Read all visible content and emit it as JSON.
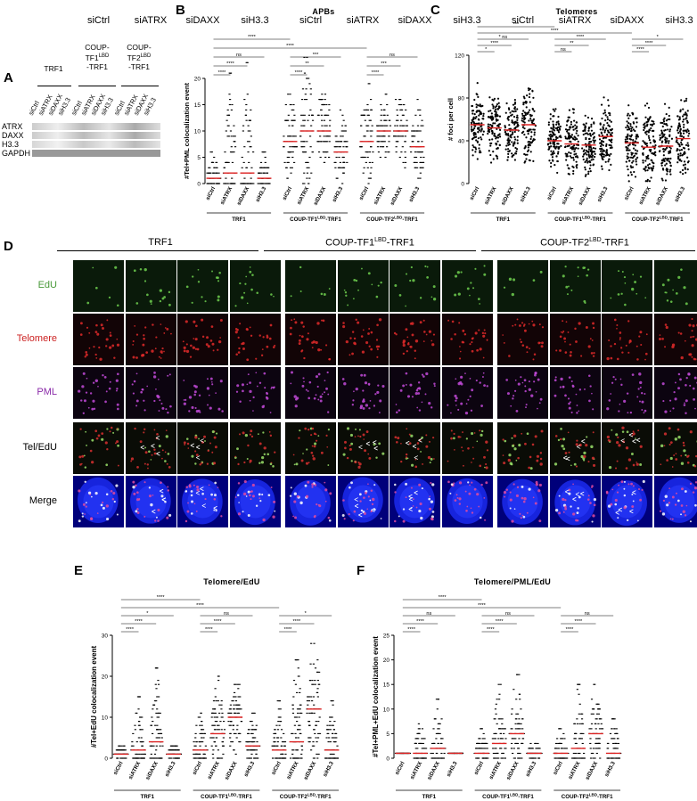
{
  "panels": {
    "A": "A",
    "B": "B",
    "C": "C",
    "D": "D",
    "E": "E",
    "F": "F"
  },
  "blot": {
    "groups": [
      {
        "label": "TRF1",
        "sup": "",
        "suffix": ""
      },
      {
        "label": "COUP-TF1",
        "sup": "LBD",
        "suffix": "-TRF1"
      },
      {
        "label": "COUP-TF2",
        "sup": "LBD",
        "suffix": "-TRF1"
      }
    ],
    "lanes": [
      "siCtrl",
      "siATRX",
      "siDAXX",
      "siH3.3"
    ],
    "proteins": [
      "ATRX",
      "DAXX",
      "H3.3",
      "GAPDH"
    ]
  },
  "imaging": {
    "groups": [
      {
        "label": "TRF1",
        "sup": "",
        "suffix": ""
      },
      {
        "label": "COUP-TF1",
        "sup": "LBD",
        "suffix": "-TRF1"
      },
      {
        "label": "COUP-TF2",
        "sup": "LBD",
        "suffix": "-TRF1"
      }
    ],
    "conditions": [
      "siCtrl",
      "siATRX",
      "siDAXX",
      "siH3.3"
    ],
    "rows": [
      {
        "label": "EdU",
        "color": "#4a9a3a"
      },
      {
        "label": "Telomere",
        "color": "#cc2222"
      },
      {
        "label": "PML",
        "color": "#8a2aa8"
      },
      {
        "label": "Tel/EdU",
        "color": "#000000"
      },
      {
        "label": "Merge",
        "color": "#000000"
      }
    ]
  },
  "chart_data": [
    {
      "id": "B",
      "type": "scatter",
      "title": "APBs",
      "ylabel": "#Tel+PML colocalization event",
      "ylim": [
        0,
        20
      ],
      "yticks": [
        0,
        5,
        10,
        15,
        20
      ],
      "categories": [
        "siCtrl",
        "siATRX",
        "siDAXX",
        "siH3.3",
        "siCtrl",
        "siATRX",
        "siDAXX",
        "siH3.3",
        "siCtrl",
        "siATRX",
        "siDAXX",
        "siH3.3"
      ],
      "groups": [
        {
          "label": "TRF1",
          "sup": "",
          "suffix": ""
        },
        {
          "label": "COUP-TF1",
          "sup": "LBD",
          "suffix": "-TRF1"
        },
        {
          "label": "COUP-TF2",
          "sup": "LBD",
          "suffix": "-TRF1"
        }
      ],
      "medians": [
        1,
        2,
        2,
        1,
        8,
        10,
        10,
        6,
        8,
        10,
        10,
        7
      ],
      "maxima": [
        7,
        21,
        23,
        6,
        17,
        24,
        19,
        14,
        19,
        17,
        19,
        16
      ],
      "significance": [
        {
          "from": 0,
          "to": 1,
          "label": "****"
        },
        {
          "from": 0,
          "to": 2,
          "label": "****"
        },
        {
          "from": 0,
          "to": 3,
          "label": "ns"
        },
        {
          "from": 0,
          "to": 4,
          "label": "****"
        },
        {
          "from": 0,
          "to": 8,
          "label": "****"
        },
        {
          "from": 4,
          "to": 5,
          "label": "****"
        },
        {
          "from": 4,
          "to": 6,
          "label": "**"
        },
        {
          "from": 4,
          "to": 7,
          "label": "***"
        },
        {
          "from": 8,
          "to": 9,
          "label": "****"
        },
        {
          "from": 8,
          "to": 10,
          "label": "***"
        },
        {
          "from": 8,
          "to": 11,
          "label": "ns"
        }
      ]
    },
    {
      "id": "C",
      "type": "scatter",
      "title": "Telomeres",
      "ylabel": "# foci per cell",
      "ylim": [
        0,
        120
      ],
      "yticks": [
        0,
        40,
        80,
        120
      ],
      "categories": [
        "siCtrl",
        "siATRX",
        "siDAXX",
        "siH3.3",
        "siCtrl",
        "siATRX",
        "siDAXX",
        "siH3.3",
        "siCtrl",
        "siATRX",
        "siDAXX",
        "siH3.3"
      ],
      "groups": [
        {
          "label": "TRF1",
          "sup": "",
          "suffix": ""
        },
        {
          "label": "COUP-TF1",
          "sup": "LBD",
          "suffix": "-TRF1"
        },
        {
          "label": "COUP-TF2",
          "sup": "LBD",
          "suffix": "-TRF1"
        }
      ],
      "medians": [
        55,
        52,
        50,
        55,
        40,
        37,
        36,
        44,
        38,
        34,
        35,
        42
      ],
      "maxima": [
        95,
        92,
        90,
        100,
        80,
        78,
        75,
        88,
        82,
        80,
        82,
        98
      ],
      "significance": [
        {
          "from": 0,
          "to": 1,
          "label": "*"
        },
        {
          "from": 0,
          "to": 2,
          "label": "****"
        },
        {
          "from": 0,
          "to": 3,
          "label": "* ns"
        },
        {
          "from": 0,
          "to": 4,
          "label": "***"
        },
        {
          "from": 0,
          "to": 8,
          "label": "****"
        },
        {
          "from": 4,
          "to": 5,
          "label": "ns"
        },
        {
          "from": 4,
          "to": 6,
          "label": "**"
        },
        {
          "from": 4,
          "to": 7,
          "label": "****"
        },
        {
          "from": 8,
          "to": 9,
          "label": "****"
        },
        {
          "from": 8,
          "to": 10,
          "label": "****"
        },
        {
          "from": 8,
          "to": 11,
          "label": "*"
        }
      ]
    },
    {
      "id": "E",
      "type": "scatter",
      "title": "Telomere/EdU",
      "ylabel": "#Tel+EdU colocalization event",
      "ylim": [
        0,
        30
      ],
      "yticks": [
        0,
        10,
        20,
        30
      ],
      "categories": [
        "siCtrl",
        "siATRX",
        "siDAXX",
        "siH3.3",
        "siCtrl",
        "siATRX",
        "siDAXX",
        "siH3.3",
        "siCtrl",
        "siATRX",
        "siDAXX",
        "siH3.3"
      ],
      "groups": [
        {
          "label": "TRF1",
          "sup": "",
          "suffix": ""
        },
        {
          "label": "COUP-TF1",
          "sup": "LBD",
          "suffix": "-TRF1"
        },
        {
          "label": "COUP-TF2",
          "sup": "LBD",
          "suffix": "-TRF1"
        }
      ],
      "medians": [
        1,
        2,
        4,
        1,
        2,
        6,
        10,
        3,
        2,
        4,
        12,
        2
      ],
      "maxima": [
        3,
        15,
        22,
        3,
        11,
        20,
        21,
        11,
        14,
        24,
        28,
        14
      ],
      "significance": [
        {
          "from": 0,
          "to": 1,
          "label": "****"
        },
        {
          "from": 0,
          "to": 2,
          "label": "****"
        },
        {
          "from": 0,
          "to": 3,
          "label": "*"
        },
        {
          "from": 0,
          "to": 4,
          "label": "****"
        },
        {
          "from": 0,
          "to": 8,
          "label": "****"
        },
        {
          "from": 4,
          "to": 5,
          "label": "****"
        },
        {
          "from": 4,
          "to": 6,
          "label": "****"
        },
        {
          "from": 4,
          "to": 7,
          "label": "ns"
        },
        {
          "from": 8,
          "to": 9,
          "label": "****"
        },
        {
          "from": 8,
          "to": 10,
          "label": "****"
        },
        {
          "from": 8,
          "to": 11,
          "label": "*"
        }
      ]
    },
    {
      "id": "F",
      "type": "scatter",
      "title": "Telomere/PML/EdU",
      "ylabel": "#Tel+PML+EdU colocalization event",
      "ylim": [
        0,
        25
      ],
      "yticks": [
        0,
        5,
        10,
        15,
        20,
        25
      ],
      "categories": [
        "siCtrl",
        "siATRX",
        "siDAXX",
        "siH3.3",
        "siCtrl",
        "siATRX",
        "siDAXX",
        "siH3.3",
        "siCtrl",
        "siATRX",
        "siDAXX",
        "siH3.3"
      ],
      "groups": [
        {
          "label": "TRF1",
          "sup": "",
          "suffix": ""
        },
        {
          "label": "COUP-TF1",
          "sup": "LBD",
          "suffix": "-TRF1"
        },
        {
          "label": "COUP-TF2",
          "sup": "LBD",
          "suffix": "-TRF1"
        }
      ],
      "medians": [
        1,
        1,
        2,
        1,
        1,
        3,
        5,
        1,
        1,
        2,
        5,
        1
      ],
      "maxima": [
        1,
        7,
        12,
        1,
        6,
        15,
        17,
        3,
        6,
        15,
        15,
        8
      ],
      "significance": [
        {
          "from": 0,
          "to": 1,
          "label": "****"
        },
        {
          "from": 0,
          "to": 2,
          "label": "****"
        },
        {
          "from": 0,
          "to": 3,
          "label": "ns"
        },
        {
          "from": 0,
          "to": 4,
          "label": "****"
        },
        {
          "from": 0,
          "to": 8,
          "label": "****"
        },
        {
          "from": 4,
          "to": 5,
          "label": "****"
        },
        {
          "from": 4,
          "to": 6,
          "label": "****"
        },
        {
          "from": 4,
          "to": 7,
          "label": "ns"
        },
        {
          "from": 8,
          "to": 9,
          "label": "****"
        },
        {
          "from": 8,
          "to": 10,
          "label": "****"
        },
        {
          "from": 8,
          "to": 11,
          "label": "ns"
        }
      ]
    }
  ]
}
